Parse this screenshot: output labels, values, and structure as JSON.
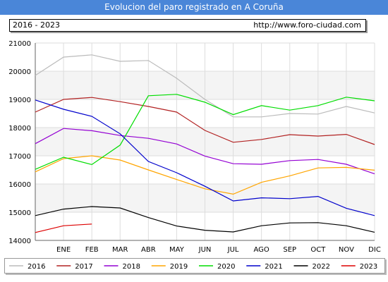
{
  "title": "Evolucion del paro registrado en A Coruña",
  "header": {
    "period": "2016 - 2023",
    "url": "http://www.foro-ciudad.com"
  },
  "chart_data": {
    "type": "line",
    "categories": [
      "",
      "ENE",
      "FEB",
      "MAR",
      "ABR",
      "MAY",
      "JUN",
      "JUL",
      "AGO",
      "SEP",
      "OCT",
      "NOV",
      "DIC"
    ],
    "ylim": [
      14000,
      21000
    ],
    "yticks": [
      14000,
      15000,
      16000,
      17000,
      18000,
      19000,
      20000,
      21000
    ],
    "ytick_labels": [
      "14000",
      "15000",
      "16000",
      "17000",
      "18000",
      "19000",
      "20000",
      "21000"
    ],
    "grid": true,
    "legend_position": "bottom",
    "series": [
      {
        "name": "2016",
        "color": "#bbbbbb",
        "values": [
          19850,
          20500,
          20580,
          20350,
          20380,
          19750,
          19000,
          18380,
          18380,
          18500,
          18480,
          18750,
          18520
        ]
      },
      {
        "name": "2017",
        "color": "#b22222",
        "values": [
          18550,
          19000,
          19070,
          18920,
          18750,
          18550,
          17900,
          17480,
          17580,
          17750,
          17700,
          17760,
          17400
        ]
      },
      {
        "name": "2018",
        "color": "#9400d3",
        "values": [
          17430,
          17970,
          17890,
          17720,
          17620,
          17420,
          16990,
          16720,
          16700,
          16830,
          16870,
          16700,
          16360
        ]
      },
      {
        "name": "2019",
        "color": "#ffa500",
        "values": [
          16430,
          16900,
          17000,
          16850,
          16500,
          16160,
          15830,
          15640,
          16060,
          16290,
          16570,
          16590,
          16490
        ]
      },
      {
        "name": "2020",
        "color": "#00dd00",
        "values": [
          16520,
          16950,
          16690,
          17380,
          19130,
          19180,
          18900,
          18460,
          18780,
          18620,
          18780,
          19080,
          18950
        ]
      },
      {
        "name": "2021",
        "color": "#0000cc",
        "values": [
          18980,
          18650,
          18400,
          17780,
          16800,
          16400,
          15920,
          15400,
          15510,
          15480,
          15560,
          15140,
          14880
        ]
      },
      {
        "name": "2022",
        "color": "#000000",
        "values": [
          14880,
          15110,
          15200,
          15150,
          14810,
          14510,
          14360,
          14300,
          14520,
          14620,
          14630,
          14520,
          14290
        ]
      },
      {
        "name": "2023",
        "color": "#dd0000",
        "values": [
          14280,
          14520,
          14580,
          null,
          null,
          null,
          null,
          null,
          null,
          null,
          null,
          null,
          null
        ]
      }
    ]
  }
}
